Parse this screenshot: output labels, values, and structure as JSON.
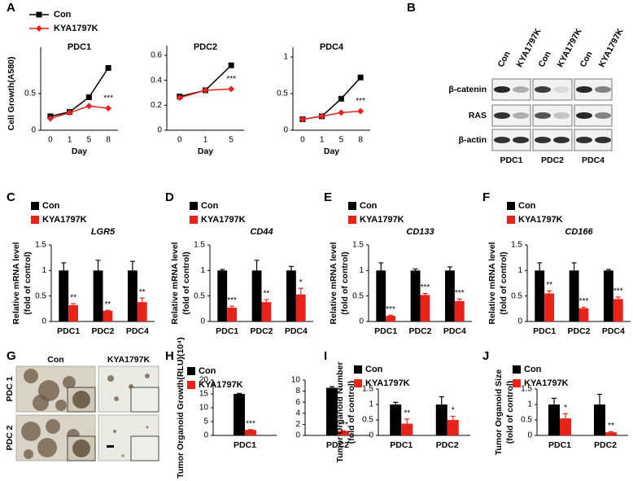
{
  "chart_data": [
    {
      "panel": "A",
      "type": "line",
      "title": "PDC1",
      "xlabel": "Day",
      "ylabel": [
        "Cell Growth(A580)"
      ],
      "categories": [
        "0",
        "1",
        "5",
        "8"
      ],
      "series": [
        {
          "name": "Con",
          "color": "#000000",
          "marker": "square",
          "values": [
            0.19,
            0.25,
            0.45,
            0.85
          ]
        },
        {
          "name": "KYA1797K",
          "color": "#e8231a",
          "marker": "diamond",
          "values": [
            0.16,
            0.24,
            0.33,
            0.3
          ]
        }
      ],
      "ylim": [
        0,
        1
      ],
      "yticks": [
        0,
        0.5
      ],
      "annotation": "***"
    },
    {
      "type": "line",
      "title": "PDC2",
      "xlabel": "Day",
      "categories": [
        "0",
        "1",
        "5"
      ],
      "series": [
        {
          "color": "#000000",
          "marker": "square",
          "values": [
            0.27,
            0.32,
            0.52
          ]
        },
        {
          "color": "#e8231a",
          "marker": "diamond",
          "values": [
            0.26,
            0.32,
            0.33
          ]
        }
      ],
      "ylim": [
        0,
        0.6
      ],
      "yticks": [
        0,
        0.2,
        0.4,
        0.6
      ],
      "annotation": "***"
    },
    {
      "type": "line",
      "title": "PDC4",
      "xlabel": "Day",
      "categories": [
        "0",
        "1",
        "5",
        "8"
      ],
      "series": [
        {
          "color": "#000000",
          "marker": "square",
          "values": [
            0.15,
            0.19,
            0.43,
            0.72
          ]
        },
        {
          "color": "#e8231a",
          "marker": "diamond",
          "values": [
            0.15,
            0.19,
            0.24,
            0.26
          ]
        }
      ],
      "ylim": [
        0,
        1
      ],
      "yticks": [
        0,
        0.5,
        1
      ],
      "annotation": "***"
    },
    {
      "panel": "C",
      "type": "bar",
      "title": "LGR5",
      "title_style": "italic",
      "ylabel": [
        "Relative mRNA  level",
        "(fold of control)"
      ],
      "categories": [
        "PDC1",
        "PDC2",
        "PDC4"
      ],
      "series": [
        {
          "name": "Con",
          "color": "#000000",
          "values": [
            1,
            1,
            1
          ],
          "errors": [
            0.15,
            0.2,
            0.18
          ]
        },
        {
          "name": "KYA1797K",
          "color": "#e8231a",
          "values": [
            0.32,
            0.21,
            0.38
          ],
          "errors": [
            0.03,
            0.01,
            0.08
          ],
          "annotations": [
            "**",
            "**",
            "**"
          ]
        }
      ],
      "ylim": [
        0,
        1.5
      ],
      "yticks": [
        0,
        0.5,
        1,
        1.5
      ]
    },
    {
      "panel": "D",
      "type": "bar",
      "title": "CD44",
      "title_style": "italic",
      "ylabel": [
        "Relative mRNA  level",
        "(fold of control)"
      ],
      "categories": [
        "PDC1",
        "PDC2",
        "PDC4"
      ],
      "series": [
        {
          "name": "Con",
          "color": "#000000",
          "values": [
            1,
            1,
            1
          ],
          "errors": [
            0.02,
            0.2,
            0.08
          ]
        },
        {
          "name": "KYA1797K",
          "color": "#e8231a",
          "values": [
            0.27,
            0.38,
            0.53
          ],
          "errors": [
            0.03,
            0.05,
            0.12
          ],
          "annotations": [
            "***",
            "**",
            "*"
          ]
        }
      ],
      "ylim": [
        0,
        1.5
      ],
      "yticks": [
        0,
        0.5,
        1,
        1.5
      ]
    },
    {
      "panel": "E",
      "type": "bar",
      "title": "CD133",
      "title_style": "italic",
      "ylabel": [
        "Relative mRNA  level",
        "(fold of control)"
      ],
      "categories": [
        "PDC1",
        "PDC2",
        "PDC4"
      ],
      "series": [
        {
          "name": "Con",
          "color": "#000000",
          "values": [
            1,
            1,
            1
          ],
          "errors": [
            0.15,
            0.03,
            0.07
          ]
        },
        {
          "name": "KYA1797K",
          "color": "#e8231a",
          "values": [
            0.11,
            0.52,
            0.4
          ],
          "errors": [
            0.01,
            0.03,
            0.04
          ],
          "annotations": [
            "***",
            "***",
            "***"
          ]
        }
      ],
      "ylim": [
        0,
        1.5
      ],
      "yticks": [
        0,
        0.5,
        1,
        1.5
      ]
    },
    {
      "panel": "F",
      "type": "bar",
      "title": "CD166",
      "title_style": "italic",
      "ylabel": [
        "Relative mRNA  level",
        "(fold of control)"
      ],
      "categories": [
        "PDC1",
        "PDC2",
        "PDC4"
      ],
      "series": [
        {
          "name": "Con",
          "color": "#000000",
          "values": [
            1,
            1,
            1
          ],
          "errors": [
            0.15,
            0.15,
            0.02
          ]
        },
        {
          "name": "KYA1797K",
          "color": "#e8231a",
          "values": [
            0.55,
            0.26,
            0.44
          ],
          "errors": [
            0.05,
            0.02,
            0.04
          ],
          "annotations": [
            "**",
            "***",
            "***"
          ]
        }
      ],
      "ylim": [
        0,
        1.5
      ],
      "yticks": [
        0,
        0.5,
        1,
        1.5
      ]
    },
    {
      "panel": "H",
      "type": "bar",
      "ylabel": [
        "Tumor Organoid Growth(RLU)(10⁴)"
      ],
      "categories": [
        "PDC1"
      ],
      "series": [
        {
          "name": "Con",
          "color": "#000000",
          "values": [
            15
          ],
          "errors": [
            0.2
          ]
        },
        {
          "name": "KYA1797K",
          "color": "#e8231a",
          "values": [
            2
          ],
          "errors": [
            0.1
          ],
          "annotations": [
            "***"
          ]
        }
      ],
      "ylim": [
        0,
        20
      ],
      "yticks": [
        0,
        5,
        10,
        15,
        20
      ]
    },
    {
      "type": "bar",
      "categories": [
        "PDC2"
      ],
      "series": [
        {
          "color": "#000000",
          "values": [
            8.6
          ],
          "errors": [
            0.2
          ]
        },
        {
          "color": "#e8231a",
          "values": [
            0.8
          ],
          "errors": [
            0.05
          ],
          "annotations": [
            "***"
          ]
        }
      ],
      "ylim": [
        0,
        10
      ],
      "yticks": [
        0,
        2,
        4,
        6,
        8,
        10
      ]
    },
    {
      "panel": "I",
      "type": "bar",
      "ylabel": [
        "Tumor Organoid Number",
        "(fold of control)"
      ],
      "categories": [
        "PDC1",
        "PDC2"
      ],
      "series": [
        {
          "name": "Con",
          "color": "#000000",
          "values": [
            1,
            1
          ],
          "errors": [
            0.07,
            0.25
          ]
        },
        {
          "name": "KYA1797K",
          "color": "#e8231a",
          "values": [
            0.38,
            0.5
          ],
          "errors": [
            0.15,
            0.12
          ],
          "annotations": [
            "**",
            "*"
          ]
        }
      ],
      "ylim": [
        0,
        1.5
      ],
      "yticks": [
        0,
        0.5,
        1,
        1.5
      ]
    },
    {
      "panel": "J",
      "type": "bar",
      "ylabel": [
        "Tumor Organoid Size",
        "(fold of control)"
      ],
      "categories": [
        "PDC1",
        "PDC2"
      ],
      "series": [
        {
          "name": "Con",
          "color": "#000000",
          "values": [
            1,
            1
          ],
          "errors": [
            0.2,
            0.33
          ]
        },
        {
          "name": "KYA1797K",
          "color": "#e8231a",
          "values": [
            0.55,
            0.1
          ],
          "errors": [
            0.15,
            0.02
          ],
          "annotations": [
            "*",
            "**"
          ]
        }
      ],
      "ylim": [
        0,
        1.5
      ],
      "yticks": [
        0,
        0.5,
        1,
        1.5
      ]
    }
  ],
  "blot": {
    "panel": "B",
    "columns": [
      "Con",
      "KYA1797K",
      "Con",
      "KYA1797K",
      "Con",
      "KYA1797K"
    ],
    "rows": [
      "β-catenin",
      "RAS",
      "β-actin"
    ],
    "groups": [
      "PDC1",
      "PDC2",
      "PDC4"
    ]
  },
  "images": {
    "panel": "G",
    "columns": [
      "Con",
      "KYA1797K"
    ],
    "rows": [
      "PDC 1",
      "PDC 2"
    ]
  }
}
